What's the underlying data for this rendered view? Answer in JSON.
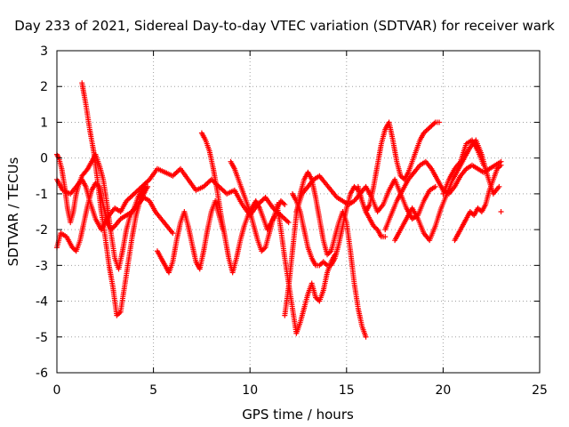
{
  "chart_data": {
    "type": "scatter",
    "title": "Day 233 of 2021, Sidereal Day-to-day VTEC variation (SDTVAR) for receiver wark",
    "xlabel": "GPS time / hours",
    "ylabel": "SDTVAR / TECUs",
    "xlim": [
      0,
      25
    ],
    "ylim": [
      -6,
      3
    ],
    "xticks": [
      "0",
      "5",
      "10",
      "15",
      "20",
      "25"
    ],
    "yticks": [
      "-6",
      "-5",
      "-4",
      "-3",
      "-2",
      "-1",
      "0",
      "1",
      "2",
      "3"
    ],
    "grid": true,
    "marker": "+",
    "color": "#ff0000",
    "series": [
      {
        "name": "s1",
        "x": [
          0,
          0.3,
          0.7,
          1.0,
          1.3,
          1.5,
          1.7,
          2.0,
          2.3,
          2.7,
          3.0,
          3.3,
          3.6,
          4.0,
          4.4,
          4.8,
          5.2,
          5.6,
          6.0,
          6.4,
          6.8,
          7.2,
          7.6,
          8.0,
          8.4,
          8.8,
          9.2,
          9.6,
          10.0,
          10.4,
          10.8,
          11.2,
          11.6,
          12.0
        ],
        "y": [
          -0.6,
          -0.9,
          -1.0,
          -0.8,
          -0.6,
          -0.8,
          -1.2,
          -1.7,
          -2.0,
          -1.6,
          -1.4,
          -1.5,
          -1.2,
          -1.0,
          -0.8,
          -0.6,
          -0.3,
          -0.4,
          -0.5,
          -0.3,
          -0.6,
          -0.9,
          -0.8,
          -0.6,
          -0.8,
          -1.0,
          -0.9,
          -1.3,
          -1.6,
          -1.3,
          -1.1,
          -1.4,
          -1.6,
          -1.8
        ]
      },
      {
        "name": "s2",
        "x": [
          1.3,
          1.5,
          1.7,
          1.9,
          2.1,
          2.3,
          2.5,
          2.7,
          2.9,
          3.1,
          3.3,
          3.5,
          3.7,
          3.9,
          4.1,
          4.3,
          4.5,
          4.7
        ],
        "y": [
          2.1,
          1.5,
          0.8,
          0.2,
          -0.6,
          -1.5,
          -2.2,
          -3.0,
          -3.6,
          -4.4,
          -4.3,
          -3.6,
          -2.9,
          -2.2,
          -1.6,
          -1.2,
          -1.0,
          -0.8
        ]
      },
      {
        "name": "s3",
        "x": [
          0.0,
          0.1,
          0.25,
          0.4,
          0.55,
          0.7,
          0.85,
          1.0,
          1.15,
          1.3,
          1.45,
          1.6,
          1.8,
          2.0,
          2.2,
          2.4,
          2.6,
          2.8,
          3.0,
          3.2,
          3.4,
          3.6,
          3.8,
          4.0,
          4.2,
          4.4,
          4.6
        ],
        "y": [
          0.1,
          0.0,
          -0.3,
          -0.8,
          -1.4,
          -1.8,
          -1.5,
          -1.0,
          -0.7,
          -0.5,
          -0.4,
          -0.3,
          -0.1,
          0.1,
          -0.2,
          -0.6,
          -1.3,
          -2.1,
          -2.8,
          -3.1,
          -2.6,
          -2.0,
          -1.6,
          -1.4,
          -1.1,
          -0.9,
          -0.7
        ]
      },
      {
        "name": "s4",
        "x": [
          0.0,
          0.2,
          0.5,
          0.8,
          1.0,
          1.2,
          1.4,
          1.6,
          1.8,
          2.0,
          2.2,
          2.4,
          2.6,
          2.8,
          3.0,
          3.3,
          3.6,
          3.9,
          4.2,
          4.5,
          4.8,
          5.1,
          5.4,
          5.7,
          6.0
        ],
        "y": [
          -2.5,
          -2.1,
          -2.2,
          -2.5,
          -2.6,
          -2.3,
          -1.8,
          -1.3,
          -0.9,
          -0.7,
          -0.8,
          -1.3,
          -1.8,
          -2.0,
          -1.9,
          -1.7,
          -1.6,
          -1.5,
          -1.3,
          -1.1,
          -1.2,
          -1.5,
          -1.7,
          -1.9,
          -2.1
        ]
      },
      {
        "name": "s5",
        "x": [
          5.2,
          5.4,
          5.6,
          5.8,
          6.0,
          6.2,
          6.4,
          6.6,
          6.8,
          7.0,
          7.2,
          7.4,
          7.6,
          7.8,
          8.0,
          8.2,
          8.4,
          8.6
        ],
        "y": [
          -2.6,
          -2.8,
          -3.0,
          -3.2,
          -2.9,
          -2.3,
          -1.8,
          -1.5,
          -1.9,
          -2.4,
          -2.9,
          -3.1,
          -2.6,
          -2.0,
          -1.5,
          -1.2,
          -1.6,
          -2.0
        ]
      },
      {
        "name": "s6",
        "x": [
          7.5,
          7.7,
          7.9,
          8.1,
          8.3,
          8.5,
          8.7,
          8.9,
          9.1,
          9.3,
          9.5,
          9.7,
          9.9,
          10.1,
          10.3,
          10.5,
          10.7,
          10.9,
          11.1,
          11.3
        ],
        "y": [
          0.7,
          0.5,
          0.2,
          -0.3,
          -0.9,
          -1.6,
          -2.2,
          -2.8,
          -3.2,
          -2.8,
          -2.3,
          -1.9,
          -1.6,
          -1.4,
          -1.2,
          -1.4,
          -1.7,
          -2.0,
          -1.8,
          -1.6
        ]
      },
      {
        "name": "s7",
        "x": [
          9.0,
          9.2,
          9.4,
          9.6,
          9.8,
          10.0,
          10.2,
          10.4,
          10.6,
          10.8,
          11.0,
          11.2,
          11.4,
          11.6,
          11.8
        ],
        "y": [
          -0.1,
          -0.3,
          -0.6,
          -0.9,
          -1.2,
          -1.5,
          -1.9,
          -2.3,
          -2.6,
          -2.5,
          -2.1,
          -1.7,
          -1.4,
          -1.2,
          -1.3
        ]
      },
      {
        "name": "s8",
        "x": [
          11.4,
          11.6,
          11.8,
          12.0,
          12.2,
          12.4,
          12.6,
          12.8,
          13.0,
          13.2,
          13.4,
          13.6,
          13.8,
          14.0,
          14.2,
          14.4
        ],
        "y": [
          -1.3,
          -2.0,
          -2.8,
          -3.5,
          -4.2,
          -4.9,
          -4.6,
          -4.2,
          -3.8,
          -3.5,
          -3.9,
          -4.0,
          -3.7,
          -3.2,
          -2.9,
          -2.7
        ]
      },
      {
        "name": "s9",
        "x": [
          11.8,
          12.0,
          12.2,
          12.4,
          12.6,
          12.8,
          13.0,
          13.2,
          13.4,
          13.6,
          13.8,
          14.0,
          14.2,
          14.4,
          14.6,
          14.8,
          15.0,
          15.2,
          15.4,
          15.6,
          15.8,
          16.0
        ],
        "y": [
          -4.4,
          -3.6,
          -2.6,
          -1.6,
          -1.0,
          -0.6,
          -0.4,
          -0.6,
          -1.1,
          -1.7,
          -2.3,
          -2.7,
          -2.6,
          -2.2,
          -1.8,
          -1.5,
          -1.8,
          -2.6,
          -3.5,
          -4.2,
          -4.7,
          -5.0
        ]
      },
      {
        "name": "s10",
        "x": [
          12.2,
          12.4,
          12.6,
          12.8,
          13.0,
          13.2,
          13.4,
          13.6,
          13.8,
          14.0,
          14.2,
          14.4,
          14.6,
          14.8,
          15.0,
          15.2,
          15.4,
          15.6,
          15.8,
          16.0,
          16.2,
          16.4,
          16.6,
          16.8,
          17.0
        ],
        "y": [
          -1.0,
          -1.2,
          -1.5,
          -2.0,
          -2.5,
          -2.8,
          -3.0,
          -3.0,
          -2.9,
          -3.0,
          -3.0,
          -2.8,
          -2.4,
          -1.9,
          -1.4,
          -1.0,
          -0.8,
          -0.9,
          -1.2,
          -1.5,
          -1.7,
          -1.9,
          -2.0,
          -2.2,
          -2.2
        ]
      },
      {
        "name": "s11",
        "x": [
          12.4,
          12.7,
          13.0,
          13.3,
          13.6,
          13.9,
          14.2,
          14.5,
          14.8,
          15.1,
          15.4,
          15.7,
          16.0,
          16.3,
          16.6,
          16.9,
          17.2,
          17.5,
          17.8,
          18.1,
          18.4,
          18.7,
          19.0,
          19.3,
          19.6
        ],
        "y": [
          -1.5,
          -1.0,
          -0.8,
          -0.6,
          -0.5,
          -0.7,
          -0.9,
          -1.1,
          -1.2,
          -1.3,
          -1.2,
          -1.0,
          -0.8,
          -1.1,
          -1.5,
          -1.3,
          -0.9,
          -0.6,
          -1.0,
          -1.4,
          -1.7,
          -1.6,
          -1.2,
          -0.9,
          -0.8
        ]
      },
      {
        "name": "s12",
        "x": [
          15.6,
          15.8,
          16.0,
          16.2,
          16.4,
          16.6,
          16.8,
          17.0,
          17.2,
          17.4,
          17.6,
          17.8,
          18.0,
          18.2,
          18.4,
          18.6,
          18.8,
          19.0,
          19.2,
          19.4,
          19.6,
          19.8
        ],
        "y": [
          -0.8,
          -1.2,
          -1.5,
          -1.3,
          -0.8,
          -0.2,
          0.4,
          0.8,
          1.0,
          0.5,
          -0.1,
          -0.5,
          -0.6,
          -0.4,
          -0.1,
          0.2,
          0.5,
          0.7,
          0.8,
          0.9,
          1.0,
          1.0
        ]
      },
      {
        "name": "s13",
        "x": [
          17.0,
          17.3,
          17.6,
          17.9,
          18.2,
          18.5,
          18.8,
          19.1,
          19.4,
          19.7,
          20.0,
          20.3,
          20.6,
          20.9,
          21.2,
          21.5,
          21.8,
          22.1,
          22.4,
          22.7,
          23.0
        ],
        "y": [
          -2.0,
          -1.6,
          -1.2,
          -0.9,
          -0.6,
          -0.4,
          -0.2,
          -0.1,
          -0.3,
          -0.6,
          -0.9,
          -1.0,
          -0.8,
          -0.5,
          -0.3,
          -0.2,
          -0.3,
          -0.4,
          -0.3,
          -0.2,
          -0.1
        ]
      },
      {
        "name": "s14",
        "x": [
          17.5,
          17.8,
          18.1,
          18.4,
          18.7,
          19.0,
          19.3,
          19.6,
          19.9,
          20.2,
          20.5,
          20.8,
          21.1,
          21.4,
          21.7,
          22.0,
          22.3,
          22.6,
          22.9
        ],
        "y": [
          -2.3,
          -2.0,
          -1.7,
          -1.4,
          -1.7,
          -2.1,
          -2.3,
          -1.9,
          -1.4,
          -1.0,
          -0.6,
          -0.3,
          0.0,
          0.3,
          0.5,
          0.1,
          -0.5,
          -1.0,
          -0.8
        ]
      },
      {
        "name": "s15",
        "x": [
          20.6,
          20.8,
          21.0,
          21.2,
          21.4,
          21.6,
          21.8,
          22.0,
          22.2,
          22.4,
          22.6,
          22.8,
          23.0
        ],
        "y": [
          -2.3,
          -2.1,
          -1.9,
          -1.7,
          -1.5,
          -1.6,
          -1.4,
          -1.5,
          -1.3,
          -0.9,
          -0.6,
          -0.3,
          -0.2
        ]
      },
      {
        "name": "s16",
        "x": [
          20.0,
          20.3,
          20.6,
          20.9,
          21.2,
          21.5,
          21.8,
          22.1
        ],
        "y": [
          -1.0,
          -0.6,
          -0.3,
          -0.1,
          0.4,
          0.5,
          0.2,
          -0.2
        ]
      },
      {
        "name": "s17",
        "x": [
          23.0
        ],
        "y": [
          -1.5
        ]
      }
    ]
  }
}
